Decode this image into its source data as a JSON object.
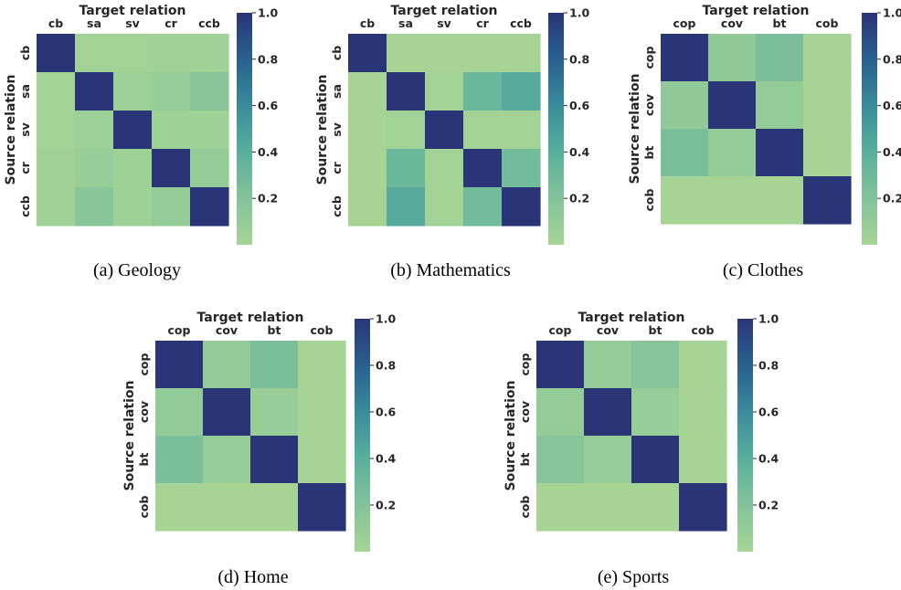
{
  "chart_data": [
    {
      "type": "heatmap",
      "caption": "(a) Geology",
      "xlabel": "Target relation",
      "ylabel": "Source relation",
      "x_categories": [
        "cb",
        "sa",
        "sv",
        "cr",
        "ccb"
      ],
      "y_categories": [
        "cb",
        "sa",
        "sv",
        "cr",
        "ccb"
      ],
      "values": [
        [
          1.0,
          0.02,
          0.02,
          0.03,
          0.03
        ],
        [
          0.02,
          1.0,
          0.05,
          0.08,
          0.17
        ],
        [
          0.02,
          0.05,
          1.0,
          0.04,
          0.04
        ],
        [
          0.03,
          0.08,
          0.04,
          1.0,
          0.1
        ],
        [
          0.03,
          0.17,
          0.04,
          0.1,
          1.0
        ]
      ],
      "colorbar": {
        "ticks": [
          1.0,
          0.8,
          0.6,
          0.4,
          0.2
        ],
        "tick_labels": [
          "1.0",
          "0.8",
          "0.6",
          "0.4",
          "0.2"
        ],
        "range": [
          0.0,
          1.0
        ]
      }
    },
    {
      "type": "heatmap",
      "caption": "(b) Mathematics",
      "xlabel": "Target relation",
      "ylabel": "Source relation",
      "x_categories": [
        "cb",
        "sa",
        "sv",
        "cr",
        "ccb"
      ],
      "y_categories": [
        "cb",
        "sa",
        "sv",
        "cr",
        "ccb"
      ],
      "values": [
        [
          1.0,
          0.0,
          0.0,
          0.0,
          0.0
        ],
        [
          0.0,
          1.0,
          0.02,
          0.32,
          0.42
        ],
        [
          0.0,
          0.02,
          1.0,
          0.02,
          0.02
        ],
        [
          0.0,
          0.32,
          0.02,
          1.0,
          0.28
        ],
        [
          0.0,
          0.42,
          0.02,
          0.28,
          1.0
        ]
      ],
      "colorbar": {
        "ticks": [
          1.0,
          0.8,
          0.6,
          0.4,
          0.2
        ],
        "tick_labels": [
          "1.0",
          "0.8",
          "0.6",
          "0.4",
          "0.2"
        ],
        "range": [
          0.0,
          1.0
        ]
      }
    },
    {
      "type": "heatmap",
      "caption": "(c) Clothes",
      "xlabel": "Target relation",
      "ylabel": "Source relation",
      "x_categories": [
        "cop",
        "cov",
        "bt",
        "cob"
      ],
      "y_categories": [
        "cop",
        "cov",
        "bt",
        "cob"
      ],
      "values": [
        [
          1.0,
          0.12,
          0.24,
          0.0
        ],
        [
          0.12,
          1.0,
          0.1,
          0.0
        ],
        [
          0.24,
          0.1,
          1.0,
          0.0
        ],
        [
          0.0,
          0.0,
          0.0,
          1.0
        ]
      ],
      "colorbar": {
        "ticks": [
          1.0,
          0.8,
          0.6,
          0.4,
          0.2
        ],
        "tick_labels": [
          "1.0",
          "0.8",
          "0.6",
          "0.4",
          "0.2"
        ],
        "range": [
          0.0,
          1.0
        ]
      }
    },
    {
      "type": "heatmap",
      "caption": "(d) Home",
      "xlabel": "Target relation",
      "ylabel": "Source relation",
      "x_categories": [
        "cop",
        "cov",
        "bt",
        "cob"
      ],
      "y_categories": [
        "cop",
        "cov",
        "bt",
        "cob"
      ],
      "values": [
        [
          1.0,
          0.11,
          0.24,
          0.0
        ],
        [
          0.11,
          1.0,
          0.08,
          0.0
        ],
        [
          0.24,
          0.08,
          1.0,
          0.0
        ],
        [
          0.0,
          0.0,
          0.0,
          1.0
        ]
      ],
      "colorbar": {
        "ticks": [
          1.0,
          0.8,
          0.6,
          0.4,
          0.2
        ],
        "tick_labels": [
          "1.0",
          "0.8",
          "0.6",
          "0.4",
          "0.2"
        ],
        "range": [
          0.0,
          1.0
        ]
      }
    },
    {
      "type": "heatmap",
      "caption": "(e) Sports",
      "xlabel": "Target relation",
      "ylabel": "Source relation",
      "x_categories": [
        "cop",
        "cov",
        "bt",
        "cob"
      ],
      "y_categories": [
        "cop",
        "cov",
        "bt",
        "cob"
      ],
      "values": [
        [
          1.0,
          0.1,
          0.18,
          0.0
        ],
        [
          0.1,
          1.0,
          0.08,
          0.0
        ],
        [
          0.18,
          0.08,
          1.0,
          0.0
        ],
        [
          0.0,
          0.0,
          0.0,
          1.0
        ]
      ],
      "colorbar": {
        "ticks": [
          1.0,
          0.8,
          0.6,
          0.4,
          0.2
        ],
        "tick_labels": [
          "1.0",
          "0.8",
          "0.6",
          "0.4",
          "0.2"
        ],
        "range": [
          0.0,
          1.0
        ]
      }
    }
  ]
}
